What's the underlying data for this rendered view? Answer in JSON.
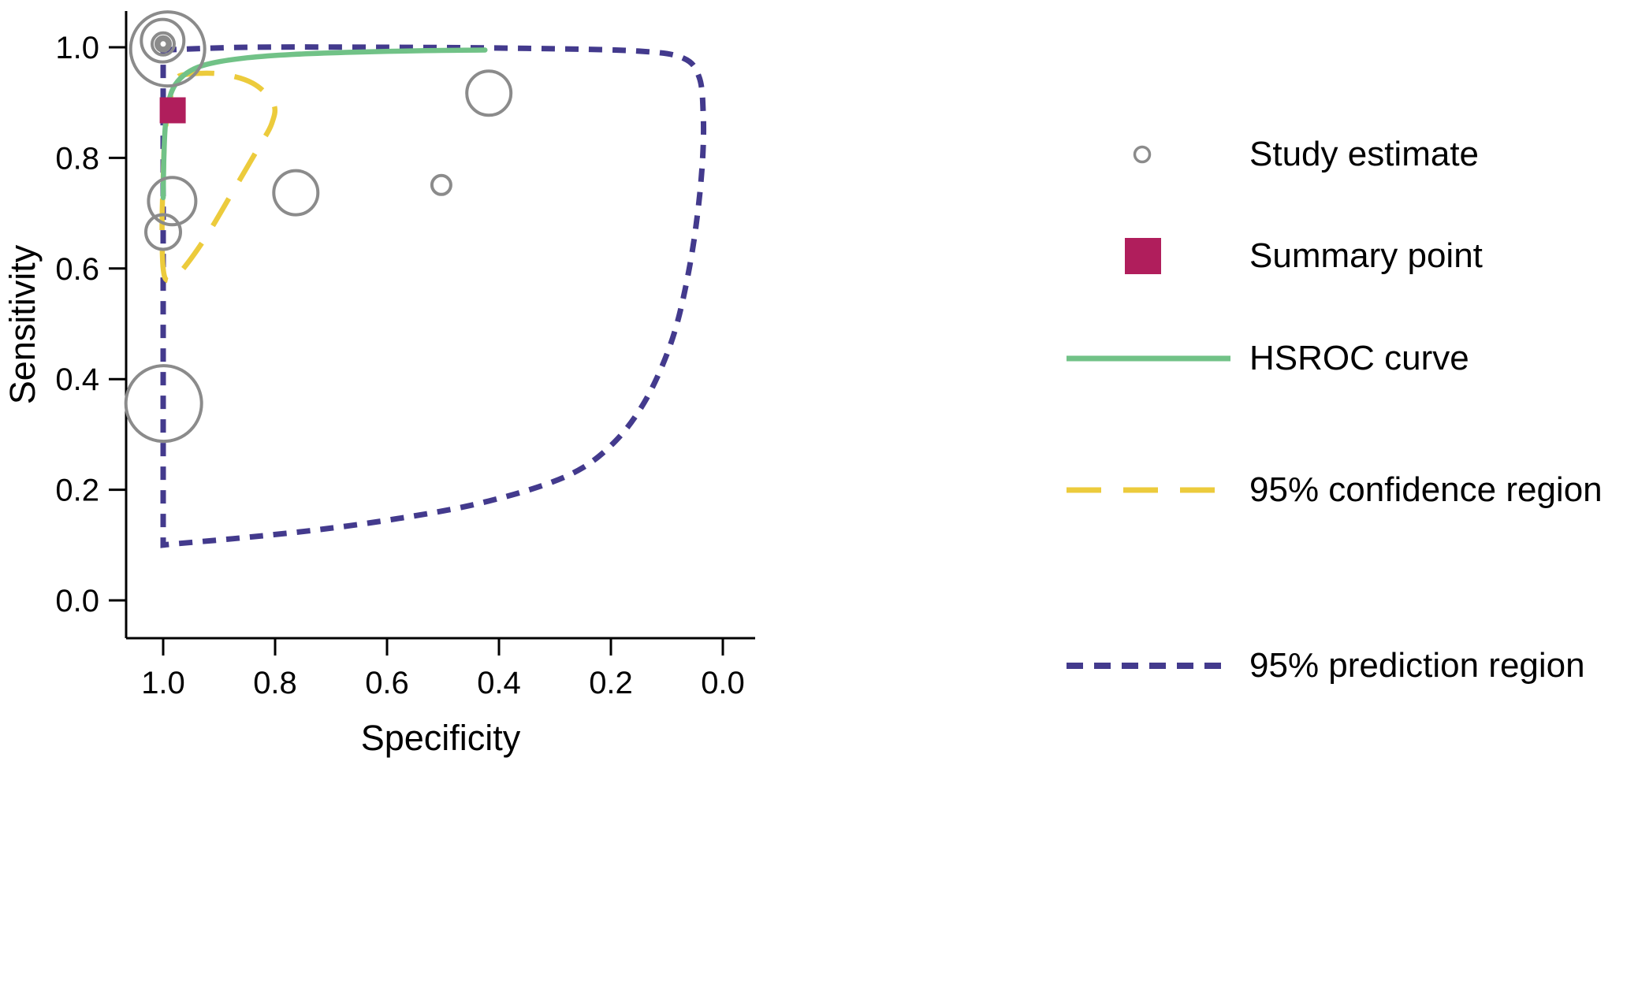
{
  "figure": {
    "background": "#ffffff"
  },
  "chart_data": {
    "type": "scatter",
    "title": "",
    "xlabel": "Specificity",
    "ylabel": "Sensitivity",
    "x_reversed": true,
    "x_range": [
      1.0,
      0.0
    ],
    "y_range": [
      0.0,
      1.0
    ],
    "x_ticks": [
      1.0,
      0.8,
      0.6,
      0.4,
      0.2,
      0.0
    ],
    "y_ticks": [
      0.0,
      0.2,
      0.4,
      0.6,
      0.8,
      1.0
    ],
    "colors": {
      "study_estimate": "#8b8b8b",
      "summary_point": "#b01e5c",
      "hsroc_curve": "#71c287",
      "confidence_region": "#eccb3c",
      "prediction_region": "#433a8d",
      "axis": "#000000"
    },
    "studies": [
      {
        "specificity": 0.992,
        "sensitivity": 0.997,
        "r": 47
      },
      {
        "specificity": 1.001,
        "sensitivity": 1.012,
        "r": 27
      },
      {
        "specificity": 1.0,
        "sensitivity": 1.006,
        "r": 14
      },
      {
        "specificity": 1.0,
        "sensitivity": 1.006,
        "r": 9
      },
      {
        "specificity": 1.0,
        "sensitivity": 1.006,
        "r": 5.5
      },
      {
        "specificity": 0.418,
        "sensitivity": 0.917,
        "r": 28
      },
      {
        "specificity": 0.503,
        "sensitivity": 0.751,
        "r": 12
      },
      {
        "specificity": 0.763,
        "sensitivity": 0.737,
        "r": 28
      },
      {
        "specificity": 0.984,
        "sensitivity": 0.722,
        "r": 30
      },
      {
        "specificity": 1.0,
        "sensitivity": 0.666,
        "r": 22
      },
      {
        "specificity": 0.999,
        "sensitivity": 0.356,
        "r": 48
      }
    ],
    "summary_point": {
      "specificity": 0.983,
      "sensitivity": 0.886
    },
    "hsroc_curve": [
      [
        1.0,
        0.728
      ],
      [
        0.999,
        0.79
      ],
      [
        0.997,
        0.845
      ],
      [
        0.993,
        0.887
      ],
      [
        0.984,
        0.922
      ],
      [
        0.969,
        0.944
      ],
      [
        0.945,
        0.961
      ],
      [
        0.91,
        0.972
      ],
      [
        0.85,
        0.981
      ],
      [
        0.77,
        0.987
      ],
      [
        0.66,
        0.991
      ],
      [
        0.53,
        0.994
      ],
      [
        0.425,
        0.995
      ]
    ],
    "confidence_region": [
      [
        0.965,
        0.95
      ],
      [
        0.9,
        0.952
      ],
      [
        0.84,
        0.935
      ],
      [
        0.803,
        0.898
      ],
      [
        0.806,
        0.862
      ],
      [
        0.83,
        0.818
      ],
      [
        0.875,
        0.74
      ],
      [
        0.925,
        0.655
      ],
      [
        0.968,
        0.595
      ],
      [
        0.991,
        0.578
      ],
      [
        1.0,
        0.6
      ],
      [
        1.002,
        0.68
      ],
      [
        1.0,
        0.76
      ],
      [
        0.997,
        0.84
      ],
      [
        0.988,
        0.905
      ],
      [
        0.975,
        0.938
      ]
    ],
    "prediction_region": [
      [
        1.0,
        0.995
      ],
      [
        0.85,
        1.0
      ],
      [
        0.6,
        1.0
      ],
      [
        0.35,
        0.998
      ],
      [
        0.15,
        0.993
      ],
      [
        0.07,
        0.98
      ],
      [
        0.042,
        0.945
      ],
      [
        0.035,
        0.88
      ],
      [
        0.036,
        0.8
      ],
      [
        0.045,
        0.7
      ],
      [
        0.06,
        0.6
      ],
      [
        0.082,
        0.5
      ],
      [
        0.11,
        0.42
      ],
      [
        0.145,
        0.35
      ],
      [
        0.19,
        0.29
      ],
      [
        0.25,
        0.24
      ],
      [
        0.33,
        0.205
      ],
      [
        0.45,
        0.172
      ],
      [
        0.58,
        0.148
      ],
      [
        0.72,
        0.128
      ],
      [
        0.86,
        0.113
      ],
      [
        0.97,
        0.103
      ],
      [
        1.0,
        0.1
      ]
    ],
    "legend": [
      "Study estimate",
      "Summary point",
      "HSROC curve",
      "95% confidence region",
      "95% prediction region"
    ]
  }
}
